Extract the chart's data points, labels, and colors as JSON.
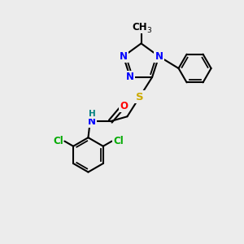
{
  "bg_color": "#ececec",
  "bond_color": "#000000",
  "bond_width": 1.5,
  "atom_colors": {
    "N": "#0000ff",
    "S": "#ccaa00",
    "O": "#ff0000",
    "Cl": "#00aa00",
    "H": "#008080",
    "C": "#000000"
  },
  "font_size": 8.5,
  "font_size_sub": 6.5
}
